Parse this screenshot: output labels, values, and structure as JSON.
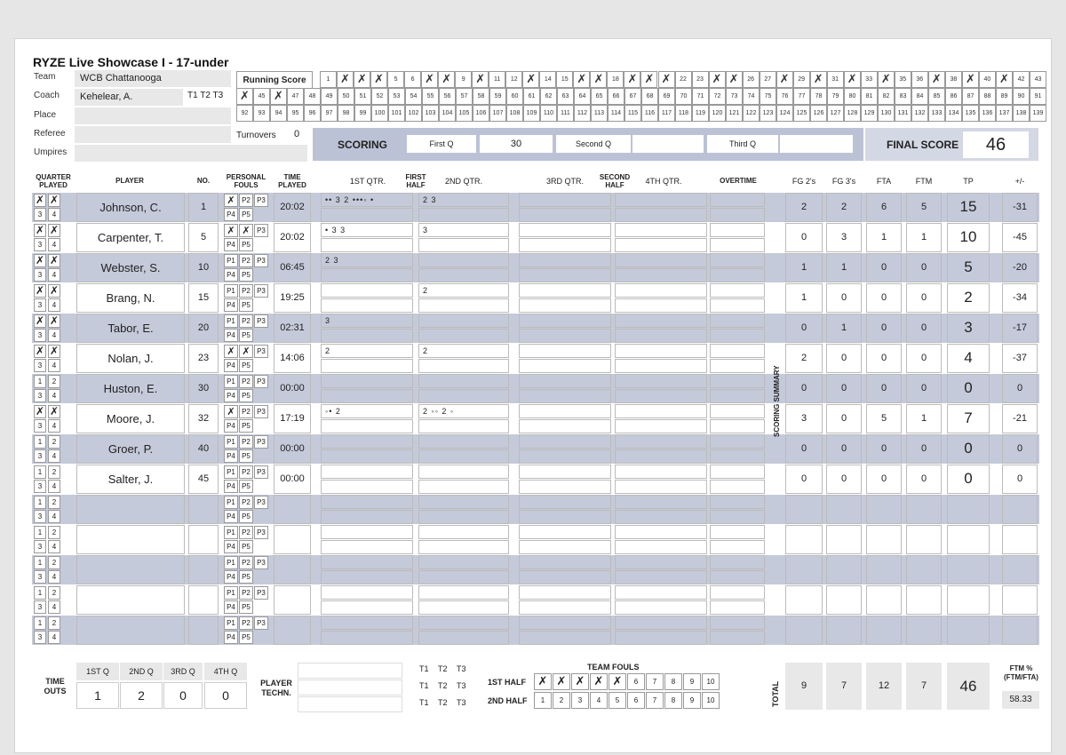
{
  "title": "RYZE Live Showcase I - 17-under",
  "info": {
    "team_label": "Team",
    "team": "WCB Chattanooga",
    "coach_label": "Coach",
    "coach": "Kehelear, A.",
    "timeouts_tags": "T1 T2 T3",
    "place_label": "Place",
    "place": "",
    "referee_label": "Referee",
    "referee": "",
    "umpires_label": "Umpires",
    "umpires": ""
  },
  "turnovers": {
    "label": "Turnovers",
    "value": "0"
  },
  "running_score": {
    "label": "Running Score",
    "marked": [
      2,
      3,
      4,
      7,
      8,
      10,
      13,
      16,
      17,
      19,
      20,
      21,
      24,
      25,
      28,
      30,
      32,
      34,
      37,
      39,
      41,
      44,
      46
    ]
  },
  "scoring": {
    "title": "SCORING",
    "first_q_label": "First Q",
    "first_q": "30",
    "second_q_label": "Second Q",
    "second_q": "",
    "third_q_label": "Third Q",
    "third_q": ""
  },
  "final_score": {
    "label": "FINAL SCORE",
    "value": "46"
  },
  "headers": {
    "quarter_played": "QUARTER PLAYED",
    "player": "PLAYER",
    "no": "NO.",
    "personal_fouls": "PERSONAL FOULS",
    "time_played": "TIME PLAYED",
    "q1": "1ST QTR.",
    "first_half": "FIRST HALF",
    "q2": "2ND QTR.",
    "q3": "3RD QTR.",
    "second_half": "SECOND HALF",
    "q4": "4TH QTR.",
    "overtime": "OVERTIME",
    "fg2": "FG 2's",
    "fg3": "FG 3's",
    "fta": "FTA",
    "ftm": "FTM",
    "tp": "TP",
    "pm": "+/-"
  },
  "scoring_summary_label": "SCORING SUMMARY",
  "players": [
    {
      "name": "Johnson, C.",
      "no": "1",
      "fouls": [
        1
      ],
      "time": "20:02",
      "qp": [
        1,
        2
      ],
      "q1": "•• 3  2 •••◦ •",
      "q2": "2  3",
      "fg2": "2",
      "fg3": "2",
      "fta": "6",
      "ftm": "5",
      "tp": "15",
      "pm": "-31"
    },
    {
      "name": "Carpenter, T.",
      "no": "5",
      "fouls": [
        1,
        2
      ],
      "time": "20:02",
      "qp": [
        1,
        2
      ],
      "q1": "•  3  3",
      "q2": "3",
      "fg2": "0",
      "fg3": "3",
      "fta": "1",
      "ftm": "1",
      "tp": "10",
      "pm": "-45"
    },
    {
      "name": "Webster, S.",
      "no": "10",
      "fouls": [],
      "time": "06:45",
      "qp": [
        1,
        2
      ],
      "q1": "2  3",
      "q2": "",
      "fg2": "1",
      "fg3": "1",
      "fta": "0",
      "ftm": "0",
      "tp": "5",
      "pm": "-20"
    },
    {
      "name": "Brang, N.",
      "no": "15",
      "fouls": [],
      "time": "19:25",
      "qp": [
        1,
        2
      ],
      "q1": "",
      "q2": "2",
      "fg2": "1",
      "fg3": "0",
      "fta": "0",
      "ftm": "0",
      "tp": "2",
      "pm": "-34"
    },
    {
      "name": "Tabor, E.",
      "no": "20",
      "fouls": [],
      "time": "02:31",
      "qp": [
        1,
        2
      ],
      "q1": "3",
      "q2": "",
      "fg2": "0",
      "fg3": "1",
      "fta": "0",
      "ftm": "0",
      "tp": "3",
      "pm": "-17"
    },
    {
      "name": "Nolan, J.",
      "no": "23",
      "fouls": [
        1,
        2
      ],
      "time": "14:06",
      "qp": [
        1,
        2
      ],
      "q1": "2",
      "q2": "2",
      "fg2": "2",
      "fg3": "0",
      "fta": "0",
      "ftm": "0",
      "tp": "4",
      "pm": "-37"
    },
    {
      "name": "Huston, E.",
      "no": "30",
      "fouls": [],
      "time": "00:00",
      "qp": [],
      "q1": "",
      "q2": "",
      "fg2": "0",
      "fg3": "0",
      "fta": "0",
      "ftm": "0",
      "tp": "0",
      "pm": "0"
    },
    {
      "name": "Moore, J.",
      "no": "32",
      "fouls": [
        1
      ],
      "time": "17:19",
      "qp": [
        1,
        2
      ],
      "q1": "◦• 2",
      "q2": "2 ◦◦  2  ◦",
      "fg2": "3",
      "fg3": "0",
      "fta": "5",
      "ftm": "1",
      "tp": "7",
      "pm": "-21"
    },
    {
      "name": "Groer, P.",
      "no": "40",
      "fouls": [],
      "time": "00:00",
      "qp": [],
      "q1": "",
      "q2": "",
      "fg2": "0",
      "fg3": "0",
      "fta": "0",
      "ftm": "0",
      "tp": "0",
      "pm": "0"
    },
    {
      "name": "Salter, J.",
      "no": "45",
      "fouls": [],
      "time": "00:00",
      "qp": [],
      "q1": "",
      "q2": "",
      "fg2": "0",
      "fg3": "0",
      "fta": "0",
      "ftm": "0",
      "tp": "0",
      "pm": "0"
    },
    {
      "name": "",
      "no": "",
      "fouls": [],
      "time": "",
      "qp": [],
      "q1": "",
      "q2": "",
      "fg2": "",
      "fg3": "",
      "fta": "",
      "ftm": "",
      "tp": "",
      "pm": ""
    },
    {
      "name": "",
      "no": "",
      "fouls": [],
      "time": "",
      "qp": [],
      "q1": "",
      "q2": "",
      "fg2": "",
      "fg3": "",
      "fta": "",
      "ftm": "",
      "tp": "",
      "pm": ""
    },
    {
      "name": "",
      "no": "",
      "fouls": [],
      "time": "",
      "qp": [],
      "q1": "",
      "q2": "",
      "fg2": "",
      "fg3": "",
      "fta": "",
      "ftm": "",
      "tp": "",
      "pm": ""
    },
    {
      "name": "",
      "no": "",
      "fouls": [],
      "time": "",
      "qp": [],
      "q1": "",
      "q2": "",
      "fg2": "",
      "fg3": "",
      "fta": "",
      "ftm": "",
      "tp": "",
      "pm": ""
    },
    {
      "name": "",
      "no": "",
      "fouls": [],
      "time": "",
      "qp": [],
      "q1": "",
      "q2": "",
      "fg2": "",
      "fg3": "",
      "fta": "",
      "ftm": "",
      "tp": "",
      "pm": ""
    }
  ],
  "timeouts": {
    "label": "TIME OUTS",
    "headers": [
      "1ST Q",
      "2ND Q",
      "3RD Q",
      "4TH Q"
    ],
    "values": [
      "1",
      "2",
      "0",
      "0"
    ]
  },
  "player_tech_label": "PLAYER TECHN.",
  "tech_tags": [
    "T1",
    "T2",
    "T3"
  ],
  "team_fouls": {
    "title": "TEAM FOULS",
    "first_half_label": "1ST HALF",
    "first_half_marked": 5,
    "second_half_label": "2ND HALF",
    "second_half_marked": 0
  },
  "totals": {
    "label": "TOTAL",
    "fg2": "9",
    "fg3": "7",
    "fta": "12",
    "ftm": "7",
    "tp": "46"
  },
  "ftm_pct": {
    "label": "FTM % (FTM/FTA)",
    "value": "58.33"
  }
}
